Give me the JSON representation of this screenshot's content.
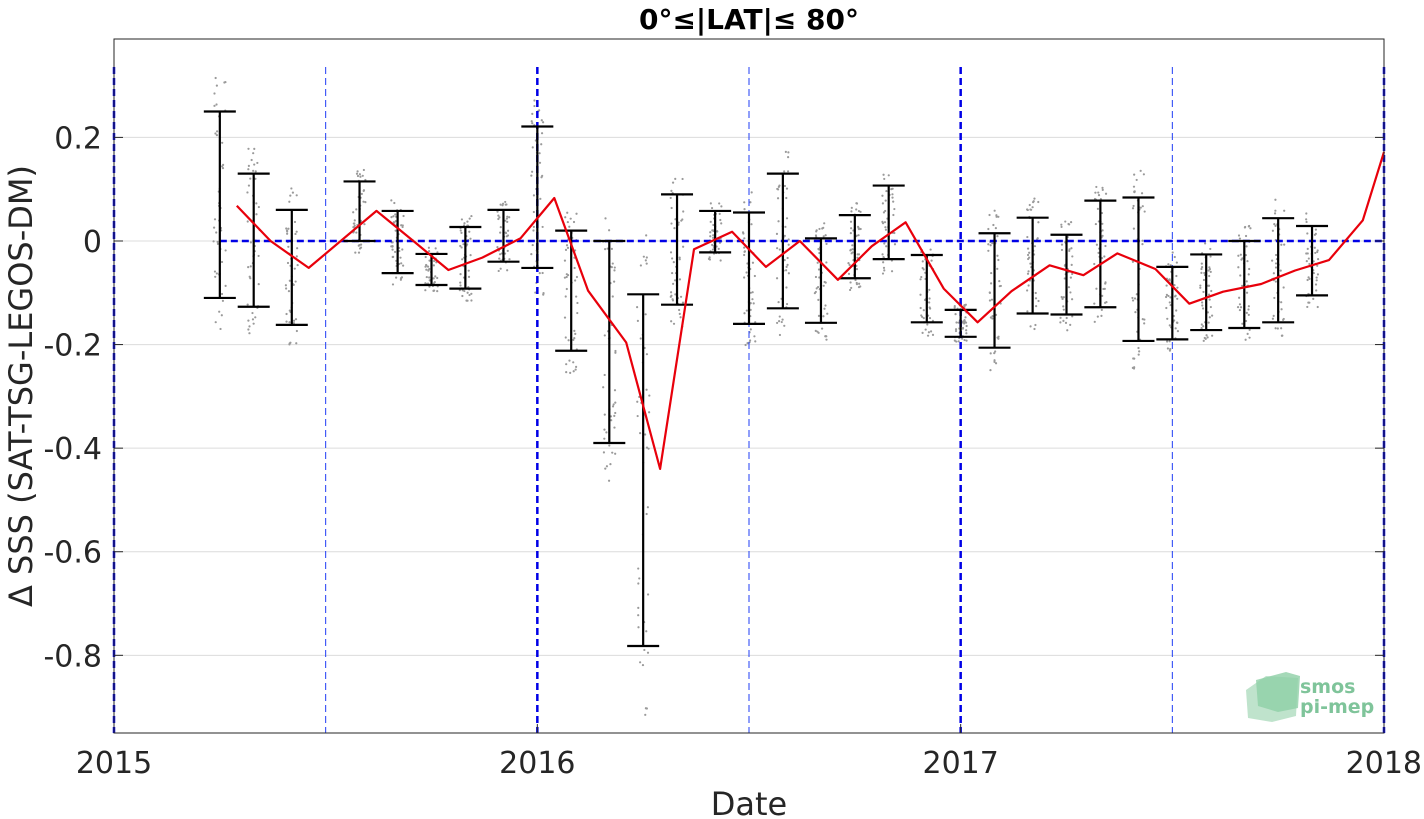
{
  "chart_data": {
    "type": "line",
    "title": "0°≤|LAT|≤ 80°",
    "xlabel": "Date",
    "ylabel": "Δ SSS (SAT-TSG-LEGOS-DM)",
    "xlim": [
      2015.0,
      2018.0
    ],
    "ylim": [
      -0.95,
      0.39
    ],
    "x_ticks": [
      2015,
      2016,
      2017,
      2018
    ],
    "x_tick_labels": [
      "2015",
      "2016",
      "2017",
      "2018"
    ],
    "y_ticks": [
      0.2,
      0,
      -0.2,
      -0.4,
      -0.6,
      -0.8
    ],
    "y_tick_labels": [
      "0.2",
      "0",
      "-0.2",
      "-0.4",
      "-0.6",
      "-0.8"
    ],
    "grid": true,
    "reference_line_y": 0,
    "year_markers": [
      2015.0,
      2016.0,
      2017.0,
      2018.0
    ],
    "half_year_markers": [
      2015.5,
      2016.5,
      2017.5
    ],
    "series": [
      {
        "style": "red-line",
        "color": "#e8000b",
        "x": [
          2015.29,
          2015.37,
          2015.46,
          2015.62,
          2015.71,
          2015.79,
          2015.87,
          2015.96,
          2016.04,
          2016.12,
          2016.21,
          2016.29,
          2016.37,
          2016.46,
          2016.54,
          2016.62,
          2016.71,
          2016.79,
          2016.87,
          2016.96,
          2017.04,
          2017.12,
          2017.21,
          2017.29,
          2017.37,
          2017.46,
          2017.54,
          2017.62,
          2017.71,
          2017.79,
          2017.87,
          2017.95,
          2018.0
        ],
        "y": [
          0.068,
          0.0,
          -0.052,
          0.058,
          -0.002,
          -0.056,
          -0.032,
          0.005,
          0.083,
          -0.096,
          -0.196,
          -0.44,
          -0.016,
          0.018,
          -0.05,
          0.0,
          -0.075,
          -0.01,
          0.036,
          -0.092,
          -0.157,
          -0.097,
          -0.047,
          -0.066,
          -0.024,
          -0.054,
          -0.121,
          -0.098,
          -0.083,
          -0.057,
          -0.037,
          0.04,
          0.172
        ]
      }
    ],
    "error_bars": [
      {
        "x": 2015.25,
        "low": -0.11,
        "high": 0.25
      },
      {
        "x": 2015.33,
        "low": -0.127,
        "high": 0.13
      },
      {
        "x": 2015.42,
        "low": -0.162,
        "high": 0.06
      },
      {
        "x": 2015.58,
        "low": 0.0,
        "high": 0.115
      },
      {
        "x": 2015.67,
        "low": -0.062,
        "high": 0.058
      },
      {
        "x": 2015.75,
        "low": -0.085,
        "high": -0.025
      },
      {
        "x": 2015.83,
        "low": -0.092,
        "high": 0.027
      },
      {
        "x": 2015.92,
        "low": -0.04,
        "high": 0.06
      },
      {
        "x": 2016.0,
        "low": -0.052,
        "high": 0.221
      },
      {
        "x": 2016.08,
        "low": -0.212,
        "high": 0.02
      },
      {
        "x": 2016.17,
        "low": -0.39,
        "high": 0.0
      },
      {
        "x": 2016.25,
        "low": -0.782,
        "high": -0.103
      },
      {
        "x": 2016.33,
        "low": -0.123,
        "high": 0.09
      },
      {
        "x": 2016.42,
        "low": -0.022,
        "high": 0.058
      },
      {
        "x": 2016.5,
        "low": -0.16,
        "high": 0.055
      },
      {
        "x": 2016.58,
        "low": -0.13,
        "high": 0.13
      },
      {
        "x": 2016.67,
        "low": -0.158,
        "high": 0.005
      },
      {
        "x": 2016.75,
        "low": -0.072,
        "high": 0.05
      },
      {
        "x": 2016.83,
        "low": -0.035,
        "high": 0.107
      },
      {
        "x": 2016.92,
        "low": -0.157,
        "high": -0.027
      },
      {
        "x": 2017.0,
        "low": -0.185,
        "high": -0.133
      },
      {
        "x": 2017.08,
        "low": -0.206,
        "high": 0.015
      },
      {
        "x": 2017.17,
        "low": -0.14,
        "high": 0.045
      },
      {
        "x": 2017.25,
        "low": -0.142,
        "high": 0.012
      },
      {
        "x": 2017.33,
        "low": -0.128,
        "high": 0.078
      },
      {
        "x": 2017.42,
        "low": -0.193,
        "high": 0.084
      },
      {
        "x": 2017.5,
        "low": -0.19,
        "high": -0.05
      },
      {
        "x": 2017.58,
        "low": -0.172,
        "high": -0.026
      },
      {
        "x": 2017.67,
        "low": -0.168,
        "high": 0.0
      },
      {
        "x": 2017.75,
        "low": -0.157,
        "high": 0.044
      },
      {
        "x": 2017.83,
        "low": -0.105,
        "high": 0.029
      }
    ],
    "legend": "none",
    "logo_text": [
      "smos",
      "pi-mep"
    ]
  }
}
